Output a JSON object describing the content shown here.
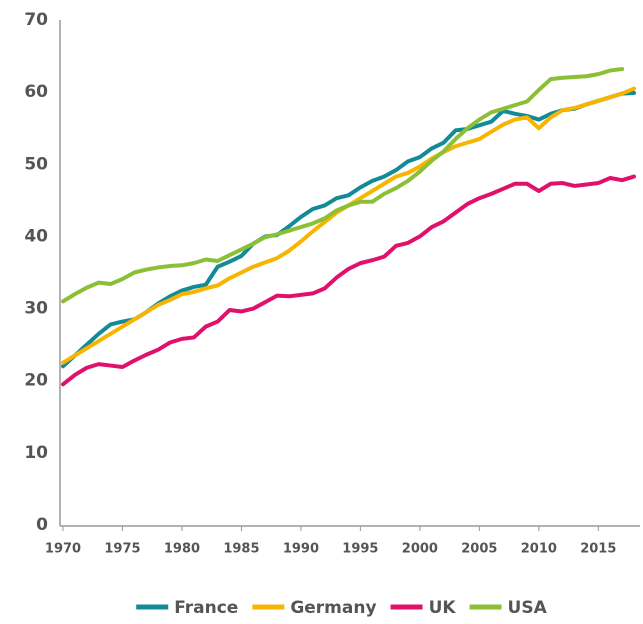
{
  "chart_data": {
    "type": "line",
    "x": [
      1970,
      1971,
      1972,
      1973,
      1974,
      1975,
      1976,
      1977,
      1978,
      1979,
      1980,
      1981,
      1982,
      1983,
      1984,
      1985,
      1986,
      1987,
      1988,
      1989,
      1990,
      1991,
      1992,
      1993,
      1994,
      1995,
      1996,
      1997,
      1998,
      1999,
      2000,
      2001,
      2002,
      2003,
      2004,
      2005,
      2006,
      2007,
      2008,
      2009,
      2010,
      2011,
      2012,
      2013,
      2014,
      2015,
      2016,
      2017,
      2018
    ],
    "series": [
      {
        "name": "France",
        "color": "#138a98",
        "values": [
          22,
          23.5,
          25,
          26.5,
          27.8,
          28.2,
          28.5,
          29.5,
          30.7,
          31.7,
          32.5,
          33,
          33.3,
          35.8,
          36.5,
          37.3,
          39,
          40,
          40.2,
          41.4,
          42.7,
          43.8,
          44.3,
          45.3,
          45.7,
          46.8,
          47.7,
          48.3,
          49.2,
          50.4,
          51,
          52.2,
          53,
          54.7,
          54.9,
          55.4,
          55.9,
          57.4,
          57,
          56.7,
          56.2,
          57,
          57.5,
          57.7,
          58.3,
          58.8,
          59.3,
          59.8,
          59.9
        ]
      },
      {
        "name": "Germany",
        "color": "#f7b500",
        "values": [
          22.5,
          23.5,
          24.5,
          25.5,
          26.5,
          27.5,
          28.5,
          29.5,
          30.5,
          31.2,
          32,
          32.3,
          32.8,
          33.2,
          34.2,
          35,
          35.8,
          36.4,
          37,
          38,
          39.3,
          40.7,
          42,
          43.3,
          44.3,
          45.3,
          46.3,
          47.3,
          48.3,
          48.8,
          49.7,
          50.8,
          51.7,
          52.5,
          53,
          53.5,
          54.5,
          55.5,
          56.2,
          56.5,
          55,
          56.5,
          57.5,
          57.8,
          58.3,
          58.8,
          59.3,
          59.8,
          60.5
        ]
      },
      {
        "name": "UK",
        "color": "#e0116b",
        "values": [
          19.5,
          20.8,
          21.8,
          22.3,
          22.1,
          21.9,
          22.8,
          23.6,
          24.3,
          25.3,
          25.8,
          26,
          27.5,
          28.2,
          29.8,
          29.6,
          30,
          30.9,
          31.8,
          31.7,
          31.9,
          32.1,
          32.8,
          34.3,
          35.5,
          36.3,
          36.7,
          37.2,
          38.7,
          39.1,
          40,
          41.3,
          42.1,
          43.3,
          44.5,
          45.3,
          45.9,
          46.6,
          47.3,
          47.3,
          46.3,
          47.3,
          47.4,
          47,
          47.2,
          47.4,
          48.1,
          47.8,
          48.3
        ]
      },
      {
        "name": "USA",
        "color": "#8bbf35",
        "values": [
          31,
          32,
          32.9,
          33.6,
          33.4,
          34.1,
          35,
          35.4,
          35.7,
          35.9,
          36,
          36.3,
          36.8,
          36.6,
          37.4,
          38.2,
          39,
          39.9,
          40.3,
          40.8,
          41.3,
          41.8,
          42.5,
          43.6,
          44.3,
          44.8,
          44.8,
          45.9,
          46.7,
          47.7,
          49,
          50.5,
          51.8,
          53.5,
          55,
          56.2,
          57.2,
          57.7,
          58.2,
          58.7,
          60.3,
          61.8,
          62,
          62.1,
          62.2,
          62.5,
          63,
          63.2,
          null
        ]
      }
    ],
    "xlim": [
      1970,
      2018
    ],
    "xticks": [
      1970,
      1975,
      1980,
      1985,
      1990,
      1995,
      2000,
      2005,
      2010,
      2015
    ],
    "ylim": [
      0,
      70
    ],
    "yticks": [
      0,
      10,
      20,
      30,
      40,
      50,
      60,
      70
    ],
    "grid": false,
    "legend": "bottom"
  }
}
